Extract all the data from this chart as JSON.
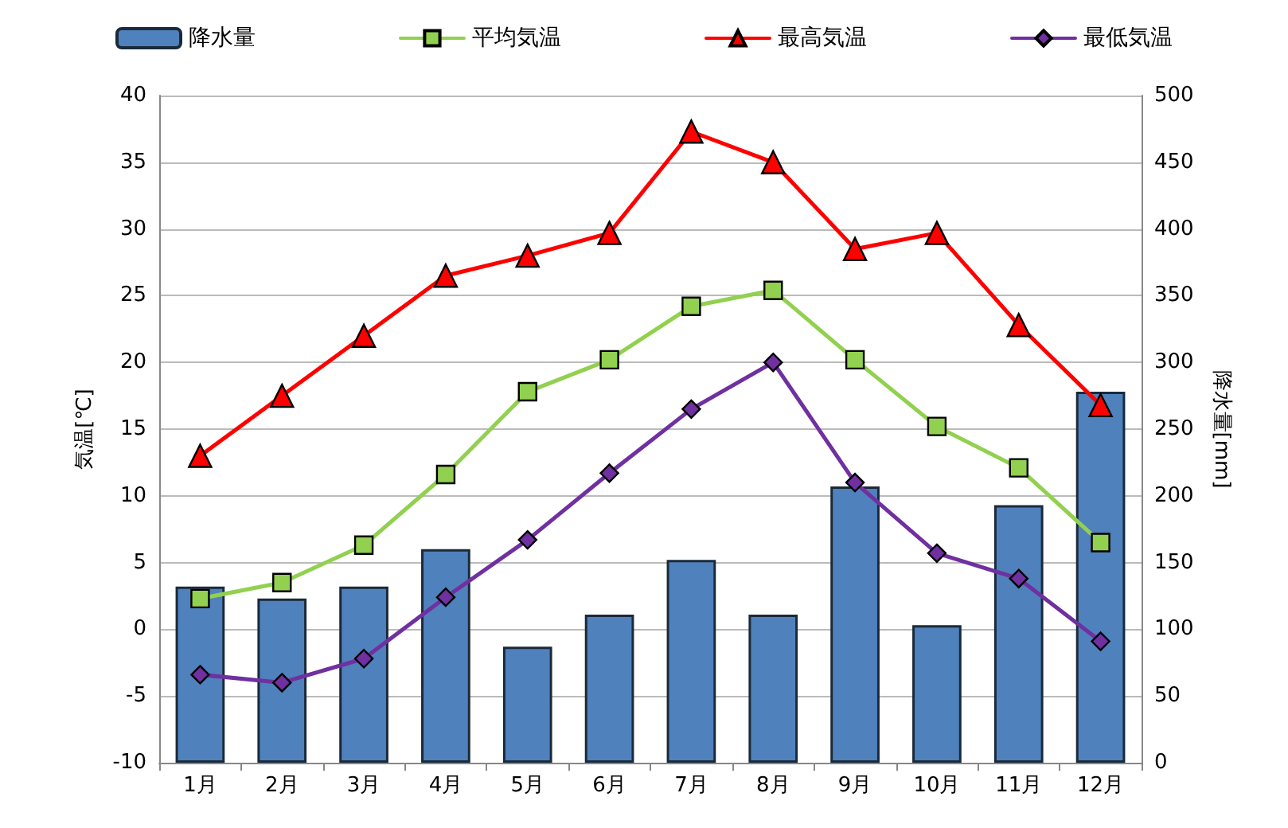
{
  "chart_data": {
    "type": "line",
    "ylabel": "気温[℃]",
    "y2label": "降水量[mm]",
    "categories": [
      "1月",
      "2月",
      "3月",
      "4月",
      "5月",
      "6月",
      "7月",
      "8月",
      "9月",
      "10月",
      "11月",
      "12月"
    ],
    "series": [
      {
        "name": "降水量",
        "type": "bar",
        "axis": "y2",
        "color": "#4f81bd",
        "values": [
          132,
          123,
          132,
          160,
          87,
          111,
          152,
          111,
          207,
          103,
          193,
          278
        ]
      },
      {
        "name": "平均気温",
        "marker": "square",
        "color": "#92d050",
        "values": [
          2.3,
          3.5,
          6.3,
          11.6,
          17.8,
          20.2,
          24.2,
          25.4,
          20.2,
          15.2,
          12.1,
          6.5
        ]
      },
      {
        "name": "最高気温",
        "marker": "triangle",
        "color": "#ff0000",
        "values": [
          13,
          17.5,
          22,
          26.5,
          28,
          29.7,
          37.3,
          35,
          28.5,
          29.7,
          22.8,
          16.8
        ]
      },
      {
        "name": "最低気温",
        "marker": "diamond",
        "color": "#7030a0",
        "values": [
          -3.4,
          -4,
          -2.2,
          2.4,
          6.7,
          11.7,
          16.5,
          20,
          11,
          5.7,
          3.8,
          -0.9
        ]
      }
    ],
    "ylim": [
      -10,
      40
    ],
    "yticks": [
      -10,
      -5,
      0,
      5,
      10,
      15,
      20,
      25,
      30,
      35,
      40
    ],
    "y2lim": [
      0,
      500
    ],
    "y2ticks": [
      0,
      50,
      100,
      150,
      200,
      250,
      300,
      350,
      400,
      450,
      500
    ],
    "grid": "y",
    "legend": "top"
  }
}
